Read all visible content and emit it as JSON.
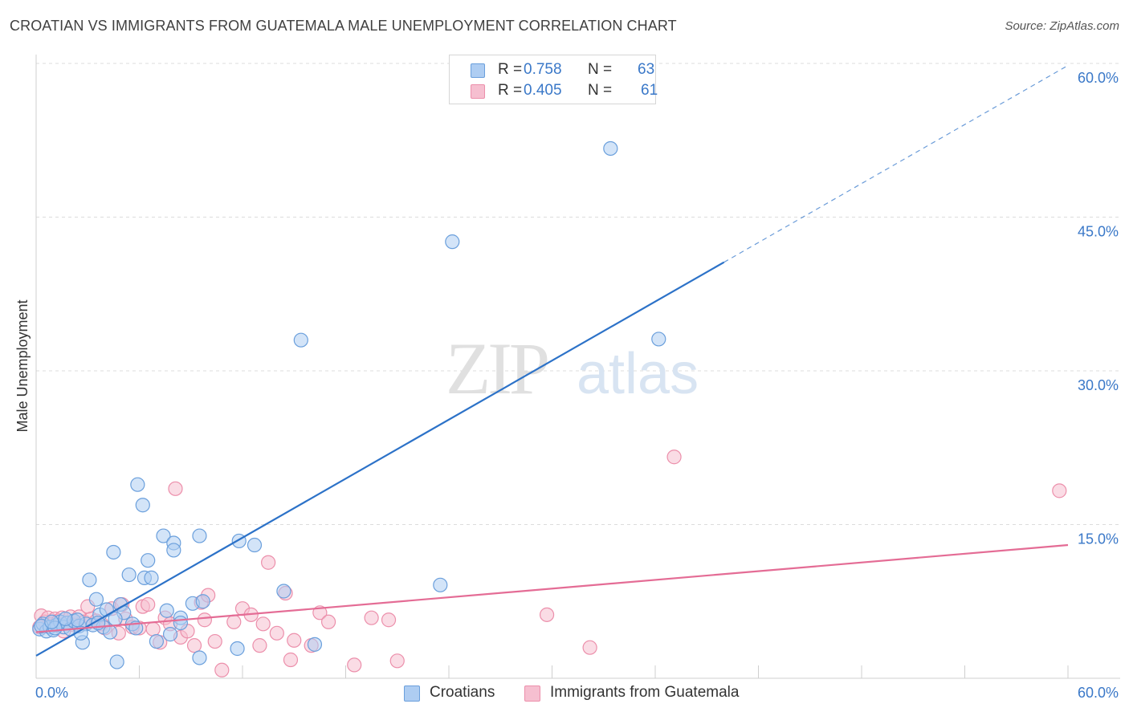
{
  "title": "CROATIAN VS IMMIGRANTS FROM GUATEMALA MALE UNEMPLOYMENT CORRELATION CHART",
  "source": "Source: ZipAtlas.com",
  "watermark": {
    "zip": "ZIP",
    "atlas": "atlas"
  },
  "legend_top": [
    {
      "r_label": "R =",
      "r_value": "0.758",
      "n_label": "N =",
      "n_value": "63"
    },
    {
      "r_label": "R =",
      "r_value": "0.405",
      "n_label": "N =",
      "n_value": "61"
    }
  ],
  "legend_bottom": [
    "Croatians",
    "Immigrants from Guatemala"
  ],
  "colors": {
    "blue_fill": "#aecdf2",
    "blue_stroke": "#6a9fdc",
    "blue_line": "#2c72c8",
    "pink_fill": "#f6bfd0",
    "pink_stroke": "#ec8fab",
    "pink_line": "#e46c95",
    "tick_text": "#3a78c8",
    "grid": "#dcdcdc"
  },
  "chart_data": {
    "type": "scatter",
    "title": "CROATIAN VS IMMIGRANTS FROM GUATEMALA MALE UNEMPLOYMENT CORRELATION CHART",
    "xlabel": "",
    "ylabel": "Male Unemployment",
    "xlim": [
      0,
      60
    ],
    "ylim": [
      0,
      60
    ],
    "x_tick_labels": [
      "0.0%",
      "60.0%"
    ],
    "y_ticks": [
      15,
      30,
      45,
      60
    ],
    "y_tick_labels": [
      "15.0%",
      "30.0%",
      "45.0%",
      "60.0%"
    ],
    "grid": true,
    "legend": "top-center",
    "series": [
      {
        "name": "Croatians",
        "r": 0.758,
        "n": 63,
        "trend": {
          "x0": 0,
          "y0": 2.2,
          "x1": 40,
          "y1": 40.6,
          "dashed_to_x": 60,
          "dashed_to_y": 59.8
        },
        "points": [
          [
            0.2,
            4.8
          ],
          [
            0.4,
            5.3
          ],
          [
            0.6,
            4.6
          ],
          [
            0.8,
            5.0
          ],
          [
            1.0,
            4.7
          ],
          [
            1.2,
            5.2
          ],
          [
            1.4,
            5.5
          ],
          [
            1.6,
            5.0
          ],
          [
            1.8,
            5.4
          ],
          [
            2.0,
            4.8
          ],
          [
            2.2,
            5.6
          ],
          [
            2.5,
            5.1
          ],
          [
            2.7,
            3.5
          ],
          [
            2.9,
            5.3
          ],
          [
            3.1,
            9.6
          ],
          [
            3.3,
            5.2
          ],
          [
            3.5,
            7.7
          ],
          [
            3.7,
            6.2
          ],
          [
            3.9,
            5.0
          ],
          [
            4.1,
            6.7
          ],
          [
            4.3,
            4.5
          ],
          [
            4.5,
            12.3
          ],
          [
            4.7,
            1.6
          ],
          [
            4.9,
            7.2
          ],
          [
            5.1,
            6.4
          ],
          [
            5.4,
            10.1
          ],
          [
            5.6,
            5.3
          ],
          [
            5.8,
            4.9
          ],
          [
            5.9,
            18.9
          ],
          [
            6.2,
            16.9
          ],
          [
            6.3,
            9.8
          ],
          [
            6.5,
            11.5
          ],
          [
            6.7,
            9.8
          ],
          [
            7.0,
            3.6
          ],
          [
            7.4,
            13.9
          ],
          [
            7.6,
            6.6
          ],
          [
            7.8,
            4.3
          ],
          [
            8.0,
            13.2
          ],
          [
            8.0,
            12.5
          ],
          [
            8.4,
            5.9
          ],
          [
            8.4,
            5.4
          ],
          [
            9.1,
            7.3
          ],
          [
            9.5,
            13.9
          ],
          [
            9.7,
            7.5
          ],
          [
            9.5,
            2.0
          ],
          [
            11.7,
            2.9
          ],
          [
            11.8,
            13.4
          ],
          [
            12.7,
            13.0
          ],
          [
            14.4,
            8.5
          ],
          [
            15.4,
            33.0
          ],
          [
            16.2,
            3.3
          ],
          [
            23.5,
            9.1
          ],
          [
            24.2,
            42.6
          ],
          [
            33.4,
            51.7
          ],
          [
            36.2,
            33.1
          ],
          [
            0.3,
            5.1
          ],
          [
            1.1,
            4.9
          ],
          [
            2.4,
            5.7
          ],
          [
            3.6,
            5.4
          ],
          [
            4.6,
            5.8
          ],
          [
            0.9,
            5.5
          ],
          [
            1.7,
            5.8
          ],
          [
            2.6,
            4.4
          ]
        ]
      },
      {
        "name": "Immigrants from Guatemala",
        "r": 0.405,
        "n": 61,
        "trend": {
          "x0": 0,
          "y0": 4.5,
          "x1": 60,
          "y1": 13.0
        },
        "points": [
          [
            0.3,
            6.1
          ],
          [
            0.5,
            5.5
          ],
          [
            0.7,
            5.9
          ],
          [
            0.9,
            5.3
          ],
          [
            1.1,
            5.8
          ],
          [
            1.3,
            5.6
          ],
          [
            1.5,
            5.9
          ],
          [
            1.8,
            5.4
          ],
          [
            2.0,
            6.0
          ],
          [
            2.2,
            5.2
          ],
          [
            2.5,
            6.0
          ],
          [
            2.8,
            5.5
          ],
          [
            3.0,
            7.0
          ],
          [
            3.2,
            5.8
          ],
          [
            3.5,
            5.6
          ],
          [
            3.8,
            5.3
          ],
          [
            4.0,
            4.9
          ],
          [
            4.4,
            6.8
          ],
          [
            4.8,
            4.4
          ],
          [
            5.0,
            7.2
          ],
          [
            5.2,
            5.8
          ],
          [
            5.6,
            5.0
          ],
          [
            6.0,
            4.9
          ],
          [
            6.2,
            7.0
          ],
          [
            6.5,
            7.2
          ],
          [
            6.8,
            4.8
          ],
          [
            7.2,
            3.5
          ],
          [
            7.5,
            5.9
          ],
          [
            7.8,
            5.3
          ],
          [
            8.1,
            18.5
          ],
          [
            8.4,
            4.0
          ],
          [
            8.8,
            4.6
          ],
          [
            9.2,
            3.2
          ],
          [
            9.6,
            7.4
          ],
          [
            9.8,
            5.7
          ],
          [
            10.0,
            8.1
          ],
          [
            10.4,
            3.6
          ],
          [
            10.8,
            0.8
          ],
          [
            11.5,
            5.5
          ],
          [
            12.0,
            6.8
          ],
          [
            12.5,
            6.2
          ],
          [
            13.0,
            3.2
          ],
          [
            13.2,
            5.3
          ],
          [
            13.5,
            11.3
          ],
          [
            14.0,
            4.4
          ],
          [
            14.5,
            8.3
          ],
          [
            14.8,
            1.8
          ],
          [
            15.0,
            3.7
          ],
          [
            16.0,
            3.2
          ],
          [
            16.5,
            6.4
          ],
          [
            17.0,
            5.5
          ],
          [
            18.5,
            1.3
          ],
          [
            19.5,
            5.9
          ],
          [
            20.5,
            5.7
          ],
          [
            21.0,
            1.7
          ],
          [
            29.7,
            6.2
          ],
          [
            32.2,
            3.0
          ],
          [
            37.1,
            21.6
          ],
          [
            59.5,
            18.3
          ],
          [
            0.2,
            5.0
          ],
          [
            1.6,
            4.6
          ]
        ]
      }
    ]
  }
}
